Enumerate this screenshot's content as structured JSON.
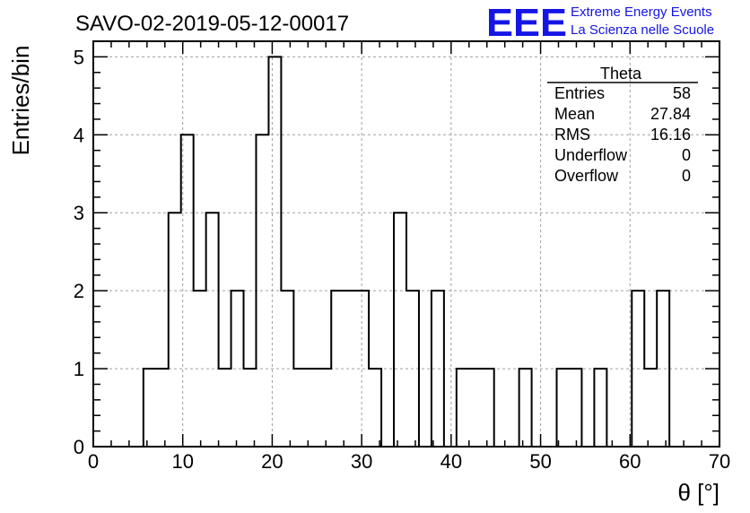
{
  "chart_data": {
    "type": "bar",
    "title": "SAVO-02-2019-05-12-00017",
    "xlabel": "θ [°]",
    "ylabel": "Entries/bin",
    "xlim": [
      0,
      70
    ],
    "ylim": [
      0,
      5.2
    ],
    "bin_width": 1.4,
    "x_ticks": [
      "0",
      "10",
      "20",
      "30",
      "40",
      "50",
      "60",
      "70"
    ],
    "y_ticks": [
      "0",
      "1",
      "2",
      "3",
      "4",
      "5"
    ],
    "grid": true,
    "bins": [
      {
        "x": 5.6,
        "value": 1
      },
      {
        "x": 7.0,
        "value": 1
      },
      {
        "x": 8.4,
        "value": 3
      },
      {
        "x": 9.8,
        "value": 4
      },
      {
        "x": 11.2,
        "value": 2
      },
      {
        "x": 12.6,
        "value": 3
      },
      {
        "x": 14.0,
        "value": 1
      },
      {
        "x": 15.4,
        "value": 2
      },
      {
        "x": 16.8,
        "value": 1
      },
      {
        "x": 18.2,
        "value": 4
      },
      {
        "x": 19.6,
        "value": 5
      },
      {
        "x": 21.0,
        "value": 2
      },
      {
        "x": 22.4,
        "value": 1
      },
      {
        "x": 23.8,
        "value": 1
      },
      {
        "x": 25.2,
        "value": 1
      },
      {
        "x": 26.6,
        "value": 2
      },
      {
        "x": 28.0,
        "value": 2
      },
      {
        "x": 29.4,
        "value": 2
      },
      {
        "x": 30.8,
        "value": 1
      },
      {
        "x": 32.2,
        "value": 0
      },
      {
        "x": 33.6,
        "value": 3
      },
      {
        "x": 35.0,
        "value": 2
      },
      {
        "x": 36.4,
        "value": 0
      },
      {
        "x": 37.8,
        "value": 2
      },
      {
        "x": 39.2,
        "value": 0
      },
      {
        "x": 40.6,
        "value": 1
      },
      {
        "x": 42.0,
        "value": 1
      },
      {
        "x": 43.4,
        "value": 1
      },
      {
        "x": 44.8,
        "value": 0
      },
      {
        "x": 46.2,
        "value": 0
      },
      {
        "x": 47.6,
        "value": 1
      },
      {
        "x": 49.0,
        "value": 0
      },
      {
        "x": 50.4,
        "value": 0
      },
      {
        "x": 51.8,
        "value": 1
      },
      {
        "x": 53.2,
        "value": 1
      },
      {
        "x": 54.6,
        "value": 0
      },
      {
        "x": 56.0,
        "value": 1
      },
      {
        "x": 57.4,
        "value": 0
      },
      {
        "x": 58.8,
        "value": 0
      },
      {
        "x": 60.2,
        "value": 2
      },
      {
        "x": 61.6,
        "value": 1
      },
      {
        "x": 63.0,
        "value": 2
      }
    ],
    "stats_box": {
      "title": "Theta",
      "rows": [
        {
          "label": "Entries",
          "value": "58"
        },
        {
          "label": "Mean",
          "value": "27.84"
        },
        {
          "label": "RMS",
          "value": "16.16"
        },
        {
          "label": "Underflow",
          "value": "0"
        },
        {
          "label": "Overflow",
          "value": "0"
        }
      ],
      "placement": "top-right"
    }
  },
  "logo": {
    "text": "EEE",
    "line1": "Extreme Energy Events",
    "line2": "La Scienza nelle Scuole",
    "color": "#1515e6"
  },
  "colors": {
    "line": "#000000",
    "grid": "#a0a0a0"
  }
}
